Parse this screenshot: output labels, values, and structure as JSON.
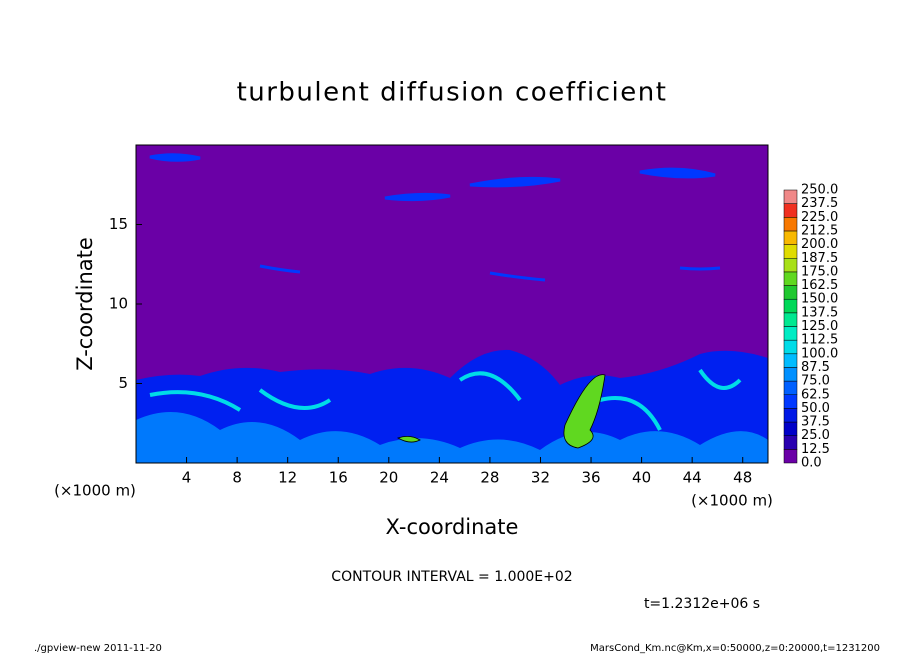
{
  "chart_data": {
    "type": "contour",
    "title": "turbulent diffusion coefficient",
    "xlabel": "X-coordinate",
    "ylabel": "Z-coordinate",
    "xunit": "(×1000 m)",
    "yunit": "(×1000 m)",
    "xlim": [
      0,
      50
    ],
    "ylim": [
      0,
      20
    ],
    "xticks": [
      4,
      8,
      12,
      16,
      20,
      24,
      28,
      32,
      36,
      40,
      44,
      48
    ],
    "yticks": [
      5,
      10,
      15
    ],
    "colorbar": {
      "levels": [
        {
          "value": 0,
          "label": "0.0"
        },
        12.5,
        {
          "value": 25,
          "label": "25.0"
        },
        37.5,
        {
          "value": 50,
          "label": "50.0"
        },
        62.5,
        {
          "value": 75,
          "label": "75.0"
        },
        87.5,
        {
          "value": 100,
          "label": "100.0"
        },
        112.5,
        {
          "value": 125,
          "label": "125.0"
        },
        137.5,
        {
          "value": 150,
          "label": "150.0"
        },
        162.5,
        {
          "value": 175,
          "label": "175.0"
        },
        187.5,
        {
          "value": 200,
          "label": "200.0"
        },
        212.5,
        {
          "value": 225,
          "label": "225.0"
        },
        237.5,
        {
          "value": 250,
          "label": "250.0"
        }
      ],
      "colors": [
        "#6a00a6",
        "#2a00b0",
        "#0000c8",
        "#0018e6",
        "#0038ff",
        "#0060ff",
        "#0090ff",
        "#00bcff",
        "#00dce8",
        "#00ecc4",
        "#00e890",
        "#00d858",
        "#20c830",
        "#60d820",
        "#a8e018",
        "#e0dc00",
        "#f8b800",
        "#f87800",
        "#f03020",
        "#f08888"
      ]
    },
    "contour_interval": "CONTOUR INTERVAL = 1.000E+02",
    "time_label": "t=1.2312e+06 s",
    "footer_left": "./gpview-new   2011-11-20",
    "footer_right": "MarsCond_Km.nc@Km,x=0:50000,z=0:20000,t=1231200"
  }
}
